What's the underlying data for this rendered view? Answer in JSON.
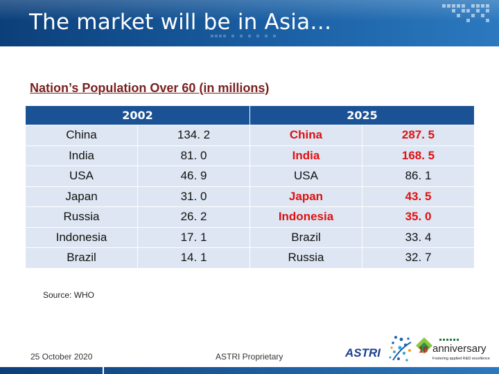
{
  "slide": {
    "title": "The market will be in Asia…",
    "subtitle": "Nation’s Population Over 60 (in millions)",
    "source": "Source: WHO",
    "date": "25 October 2020",
    "footer_center": "ASTRI Proprietary"
  },
  "table": {
    "headers": [
      "2002",
      "2025"
    ],
    "rows": [
      {
        "n2002": "China",
        "v2002": "134. 2",
        "n2025": "China",
        "v2025": "287. 5",
        "hl": true
      },
      {
        "n2002": "India",
        "v2002": "81. 0",
        "n2025": "India",
        "v2025": "168. 5",
        "hl": true
      },
      {
        "n2002": "USA",
        "v2002": "46. 9",
        "n2025": "USA",
        "v2025": "86. 1",
        "hl": false
      },
      {
        "n2002": "Japan",
        "v2002": "31. 0",
        "n2025": "Japan",
        "v2025": "43. 5",
        "hl": true
      },
      {
        "n2002": "Russia",
        "v2002": "26. 2",
        "n2025": "Indonesia",
        "v2025": "35. 0",
        "hl": true
      },
      {
        "n2002": "Indonesia",
        "v2002": "17. 1",
        "n2025": "Brazil",
        "v2025": "33. 4",
        "hl": false
      },
      {
        "n2002": "Brazil",
        "v2002": "14. 1",
        "n2025": "Russia",
        "v2025": "32. 7",
        "hl": false
      }
    ]
  },
  "logos": {
    "astri": "ASTRI",
    "anniversary": "anniversary",
    "anniversary_tagline": "Fostering applied R&D excellence"
  },
  "colors": {
    "title_bar": "#1a5fa3",
    "header_bg": "#1b5295",
    "cell_bg": "#dde6f2",
    "highlight": "#e01010",
    "subtitle": "#7a1f1f"
  }
}
